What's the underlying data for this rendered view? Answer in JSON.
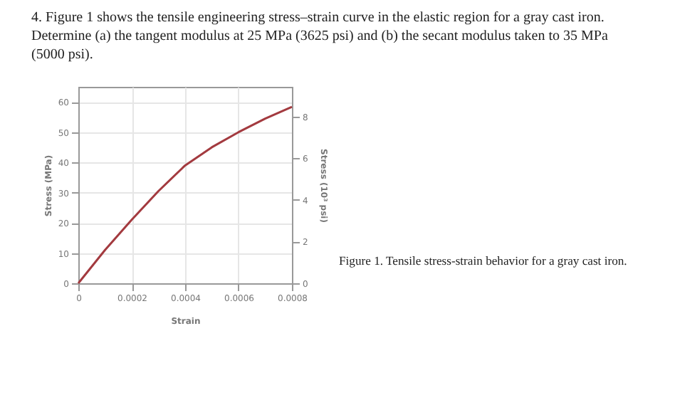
{
  "chart_data": {
    "type": "line",
    "title": "4. Figure 1 shows the tensile engineering stress–strain curve in the elastic region for a gray cast iron. Determine (a) the tangent modulus at 25 MPa (3625 psi) and (b) the secant modulus taken to 35 MPa (5000 psi).",
    "annotations": [
      "Figure 1. Tensile stress-strain behavior for a gray cast iron."
    ],
    "xlabel": "Strain",
    "ylabel": "Stress (MPa)",
    "y2label": "Stress (10³ psi)",
    "x": [
      0,
      0.0001,
      0.0002,
      0.0003,
      0.0004,
      0.0005,
      0.0006,
      0.0007,
      0.0008
    ],
    "series": [
      {
        "color": "#a33a3f",
        "values": [
          0,
          11,
          21,
          30.5,
          39,
          45,
          50,
          54.5,
          58.4
        ]
      }
    ],
    "xlim": [
      0,
      0.0008
    ],
    "xticks": [
      0,
      0.0002,
      0.0004,
      0.0006,
      0.0008
    ],
    "ylim": [
      0,
      65
    ],
    "yticks": [
      0,
      10,
      20,
      30,
      40,
      50,
      60
    ],
    "y2lim": [
      0,
      9.43
    ],
    "y2ticks": [
      0,
      2,
      4,
      6,
      8
    ],
    "grid": true,
    "marker": "none",
    "line_style": "solid"
  }
}
